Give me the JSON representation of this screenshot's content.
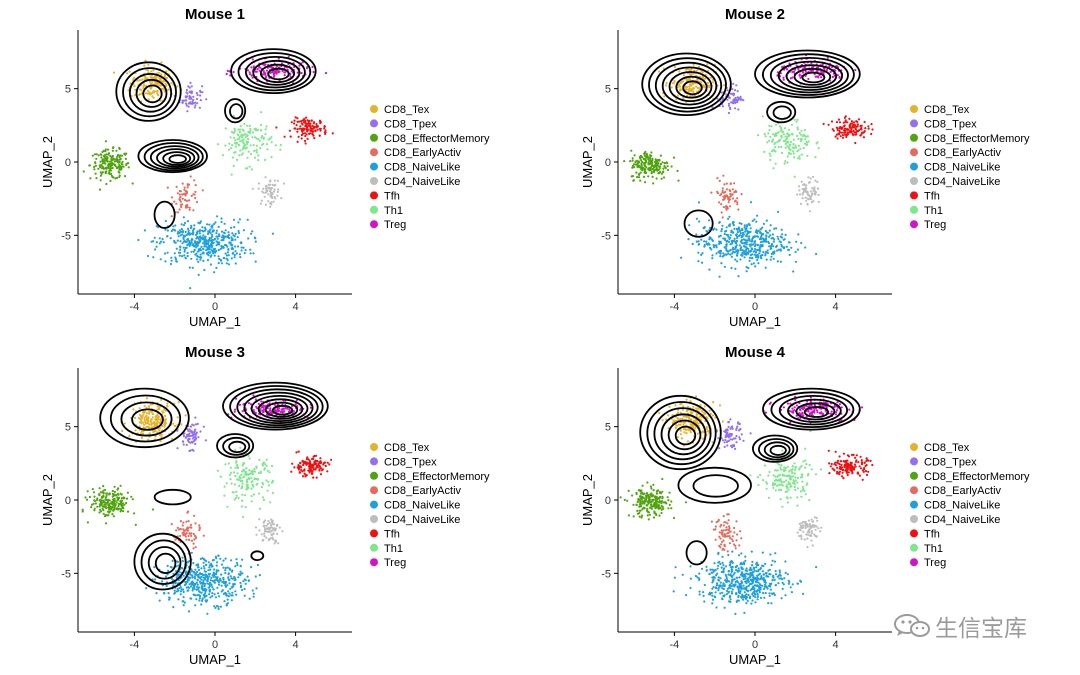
{
  "chart_data": [
    {
      "type": "scatter",
      "title": "Mouse 1",
      "xlabel": "UMAP_1",
      "ylabel": "UMAP_2",
      "xlim": [
        -6.8,
        6.8
      ],
      "ylim": [
        -9.0,
        9.0
      ],
      "xticks": [
        -4,
        0,
        4
      ],
      "yticks": [
        -5,
        0,
        5
      ],
      "contours": [
        {
          "cx": -3.3,
          "cy": 4.8,
          "rx": 1.6,
          "ry": 2.0,
          "levels": 5
        },
        {
          "cx": -2.1,
          "cy": 0.4,
          "rx": 1.7,
          "ry": 1.1,
          "levels": 6
        },
        {
          "cx": 2.9,
          "cy": 6.2,
          "rx": 2.1,
          "ry": 1.5,
          "levels": 6
        },
        {
          "cx": 1.0,
          "cy": 3.5,
          "rx": 0.5,
          "ry": 0.8,
          "levels": 2
        },
        {
          "cx": -2.5,
          "cy": -3.6,
          "rx": 0.5,
          "ry": 0.9,
          "levels": 1
        }
      ]
    },
    {
      "type": "scatter",
      "title": "Mouse 2",
      "xlabel": "UMAP_1",
      "ylabel": "UMAP_2",
      "xlim": [
        -6.8,
        6.8
      ],
      "ylim": [
        -9.0,
        9.0
      ],
      "xticks": [
        -4,
        0,
        4
      ],
      "yticks": [
        -5,
        0,
        5
      ],
      "contours": [
        {
          "cx": -3.4,
          "cy": 5.3,
          "rx": 2.2,
          "ry": 2.1,
          "levels": 7
        },
        {
          "cx": 2.6,
          "cy": 6.0,
          "rx": 2.6,
          "ry": 1.6,
          "levels": 7
        },
        {
          "cx": 1.3,
          "cy": 3.4,
          "rx": 0.7,
          "ry": 0.7,
          "levels": 2
        },
        {
          "cx": -2.8,
          "cy": -4.2,
          "rx": 0.7,
          "ry": 0.9,
          "levels": 1
        }
      ]
    },
    {
      "type": "scatter",
      "title": "Mouse 3",
      "xlabel": "UMAP_1",
      "ylabel": "UMAP_2",
      "xlim": [
        -6.8,
        6.8
      ],
      "ylim": [
        -9.0,
        9.0
      ],
      "xticks": [
        -4,
        0,
        4
      ],
      "yticks": [
        -5,
        0,
        5
      ],
      "contours": [
        {
          "cx": -3.5,
          "cy": 5.6,
          "rx": 2.2,
          "ry": 2.0,
          "levels": 4
        },
        {
          "cx": 3.0,
          "cy": 6.4,
          "rx": 2.6,
          "ry": 1.6,
          "levels": 8
        },
        {
          "cx": 1.0,
          "cy": 3.7,
          "rx": 0.9,
          "ry": 0.8,
          "levels": 3
        },
        {
          "cx": -2.6,
          "cy": -4.2,
          "rx": 1.4,
          "ry": 1.9,
          "levels": 4
        },
        {
          "cx": -2.1,
          "cy": 0.2,
          "rx": 0.9,
          "ry": 0.5,
          "levels": 1
        },
        {
          "cx": 2.1,
          "cy": -3.8,
          "rx": 0.3,
          "ry": 0.3,
          "levels": 1
        }
      ]
    },
    {
      "type": "scatter",
      "title": "Mouse 4",
      "xlabel": "UMAP_1",
      "ylabel": "UMAP_2",
      "xlim": [
        -6.8,
        6.8
      ],
      "ylim": [
        -9.0,
        9.0
      ],
      "xticks": [
        -4,
        0,
        4
      ],
      "yticks": [
        -5,
        0,
        5
      ],
      "contours": [
        {
          "cx": -3.7,
          "cy": 4.6,
          "rx": 2.0,
          "ry": 2.5,
          "levels": 6
        },
        {
          "cx": 2.8,
          "cy": 6.2,
          "rx": 2.4,
          "ry": 1.4,
          "levels": 6
        },
        {
          "cx": 1.0,
          "cy": 3.5,
          "rx": 1.1,
          "ry": 0.9,
          "levels": 4
        },
        {
          "cx": -2.0,
          "cy": 1.0,
          "rx": 1.8,
          "ry": 1.2,
          "levels": 2
        },
        {
          "cx": -2.9,
          "cy": -3.6,
          "rx": 0.5,
          "ry": 0.8,
          "levels": 1
        }
      ]
    }
  ],
  "clusters": [
    {
      "name": "CD8_Tex",
      "color": "#E5B229",
      "cx": -3.1,
      "cy": 5.4,
      "sx": 1.0,
      "sy": 1.1,
      "n": 220
    },
    {
      "name": "CD8_Tpex",
      "color": "#9370F0",
      "cx": -1.2,
      "cy": 4.4,
      "sx": 0.5,
      "sy": 0.8,
      "n": 70
    },
    {
      "name": "CD8_EffectorMemory",
      "color": "#4FA40F",
      "cx": -5.2,
      "cy": -0.2,
      "sx": 0.9,
      "sy": 0.9,
      "n": 200
    },
    {
      "name": "CD8_EarlyActiv",
      "color": "#E56B5D",
      "cx": -1.4,
      "cy": -2.3,
      "sx": 0.6,
      "sy": 1.0,
      "n": 70
    },
    {
      "name": "CD8_NaiveLike",
      "color": "#1FA0DC",
      "cx": -0.6,
      "cy": -5.5,
      "sx": 2.0,
      "sy": 1.4,
      "n": 480
    },
    {
      "name": "CD4_NaiveLike",
      "color": "#BDBDBD",
      "cx": 2.7,
      "cy": -2.0,
      "sx": 0.5,
      "sy": 0.8,
      "n": 70
    },
    {
      "name": "Tfh",
      "color": "#F01010",
      "cx": 4.7,
      "cy": 2.3,
      "sx": 0.8,
      "sy": 0.6,
      "n": 130
    },
    {
      "name": "Th1",
      "color": "#7CE88A",
      "cx": 1.6,
      "cy": 1.4,
      "sx": 1.1,
      "sy": 1.4,
      "n": 150
    },
    {
      "name": "Treg",
      "color": "#D214C8",
      "cx": 2.9,
      "cy": 6.2,
      "sx": 1.6,
      "sy": 0.6,
      "n": 170
    }
  ],
  "legend": {
    "entries": [
      {
        "label": "CD8_Tex",
        "color": "#E5B229"
      },
      {
        "label": "CD8_Tpex",
        "color": "#9370F0"
      },
      {
        "label": "CD8_EffectorMemory",
        "color": "#4FA40F"
      },
      {
        "label": "CD8_EarlyActiv",
        "color": "#E56B5D"
      },
      {
        "label": "CD8_NaiveLike",
        "color": "#1FA0DC"
      },
      {
        "label": "CD4_NaiveLike",
        "color": "#BDBDBD"
      },
      {
        "label": "Tfh",
        "color": "#F01010"
      },
      {
        "label": "Th1",
        "color": "#7CE88A"
      },
      {
        "label": "Treg",
        "color": "#D214C8"
      }
    ]
  },
  "watermark": {
    "text": "生信宝库",
    "icon": "wechat-icon"
  }
}
